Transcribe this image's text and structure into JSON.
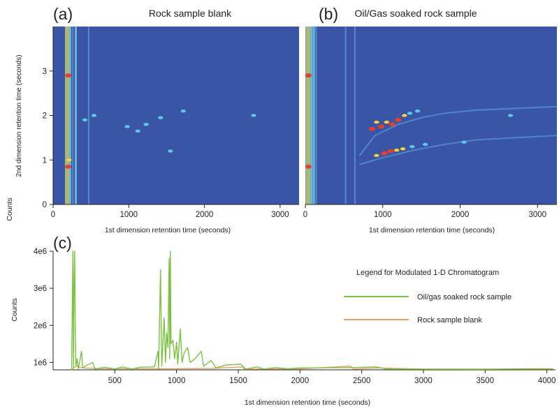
{
  "chart_data": [
    {
      "panel": "(a)",
      "type": "heatmap",
      "title": "Rock sample blank",
      "xlabel": "1st dimension retention time (seconds)",
      "ylabel": "2nd dimension retention time (seconds)",
      "xlim": [
        0,
        3250
      ],
      "ylim": [
        0,
        4
      ],
      "xticks": [
        0,
        1000,
        2000,
        3000
      ],
      "yticks": [
        0,
        1,
        2,
        3
      ],
      "column_streaks": [
        {
          "x": 175,
          "intensity": "high"
        },
        {
          "x": 200,
          "intensity": "high"
        },
        {
          "x": 225,
          "intensity": "medium"
        },
        {
          "x": 260,
          "intensity": "low"
        },
        {
          "x": 300,
          "intensity": "medium"
        },
        {
          "x": 470,
          "intensity": "low"
        }
      ],
      "spots": [
        {
          "x": 200,
          "y": 2.9,
          "intensity": "high"
        },
        {
          "x": 200,
          "y": 0.85,
          "intensity": "high"
        },
        {
          "x": 210,
          "y": 1.0,
          "intensity": "medium"
        },
        {
          "x": 420,
          "y": 1.9,
          "intensity": "low"
        },
        {
          "x": 540,
          "y": 2.0,
          "intensity": "low"
        },
        {
          "x": 980,
          "y": 1.75,
          "intensity": "low"
        },
        {
          "x": 1120,
          "y": 1.65,
          "intensity": "low"
        },
        {
          "x": 1230,
          "y": 1.8,
          "intensity": "low"
        },
        {
          "x": 1420,
          "y": 1.95,
          "intensity": "low"
        },
        {
          "x": 1720,
          "y": 2.1,
          "intensity": "low"
        },
        {
          "x": 1550,
          "y": 1.2,
          "intensity": "low"
        },
        {
          "x": 2650,
          "y": 2.0,
          "intensity": "low"
        }
      ]
    },
    {
      "panel": "(b)",
      "type": "heatmap",
      "title": "Oil/Gas soaked rock sample",
      "xlabel": "1st dimension retention time (seconds)",
      "ylabel": "",
      "xlim": [
        0,
        3250
      ],
      "ylim": [
        0,
        4
      ],
      "xticks": [
        0,
        1000,
        2000,
        3000
      ],
      "column_streaks": [
        {
          "x": 20,
          "intensity": "high"
        },
        {
          "x": 50,
          "intensity": "high"
        },
        {
          "x": 80,
          "intensity": "medium"
        },
        {
          "x": 110,
          "intensity": "medium"
        },
        {
          "x": 140,
          "intensity": "low"
        },
        {
          "x": 520,
          "intensity": "low"
        },
        {
          "x": 640,
          "intensity": "low"
        }
      ],
      "spots": [
        {
          "x": 40,
          "y": 2.9,
          "intensity": "high"
        },
        {
          "x": 40,
          "y": 0.85,
          "intensity": "high"
        },
        {
          "x": 860,
          "y": 1.7,
          "intensity": "high"
        },
        {
          "x": 920,
          "y": 1.85,
          "intensity": "medium"
        },
        {
          "x": 980,
          "y": 1.75,
          "intensity": "high"
        },
        {
          "x": 1050,
          "y": 1.85,
          "intensity": "medium"
        },
        {
          "x": 1120,
          "y": 1.8,
          "intensity": "high"
        },
        {
          "x": 1200,
          "y": 1.9,
          "intensity": "high"
        },
        {
          "x": 1280,
          "y": 2.0,
          "intensity": "medium"
        },
        {
          "x": 1350,
          "y": 2.05,
          "intensity": "low"
        },
        {
          "x": 1450,
          "y": 2.1,
          "intensity": "low"
        },
        {
          "x": 920,
          "y": 1.1,
          "intensity": "medium"
        },
        {
          "x": 1020,
          "y": 1.15,
          "intensity": "high"
        },
        {
          "x": 1100,
          "y": 1.2,
          "intensity": "high"
        },
        {
          "x": 1180,
          "y": 1.22,
          "intensity": "medium"
        },
        {
          "x": 1260,
          "y": 1.25,
          "intensity": "medium"
        },
        {
          "x": 1380,
          "y": 1.3,
          "intensity": "low"
        },
        {
          "x": 1550,
          "y": 1.35,
          "intensity": "low"
        },
        {
          "x": 2050,
          "y": 1.4,
          "intensity": "low"
        },
        {
          "x": 2650,
          "y": 2.0,
          "intensity": "low"
        }
      ],
      "curves": [
        {
          "intensity": "low",
          "points": [
            [
              700,
              0.9
            ],
            [
              1000,
              1.05
            ],
            [
              1400,
              1.22
            ],
            [
              1800,
              1.35
            ],
            [
              2200,
              1.45
            ],
            [
              2700,
              1.5
            ],
            [
              3250,
              1.55
            ]
          ]
        },
        {
          "intensity": "low",
          "points": [
            [
              700,
              1.1
            ],
            [
              900,
              1.55
            ],
            [
              1200,
              1.8
            ],
            [
              1500,
              1.95
            ],
            [
              1800,
              2.05
            ],
            [
              2200,
              2.12
            ],
            [
              3250,
              2.2
            ]
          ]
        }
      ]
    },
    {
      "panel": "(c)",
      "type": "line",
      "title": "Legend for Modulated 1-D Chromatogram",
      "xlabel": "1st dimension retention time (seconds)",
      "ylabel": "Counts",
      "xlim": [
        0,
        4070
      ],
      "ylim": [
        800000,
        4000000
      ],
      "xticks": [
        500,
        1000,
        1500,
        2000,
        2500,
        3000,
        3500,
        4000
      ],
      "yticks": [
        1000000,
        2000000,
        3000000,
        4000000
      ],
      "ytick_labels": [
        "1e6",
        "2e6",
        "3e6",
        "4e6"
      ],
      "legend_position": "top-right",
      "series": [
        {
          "name": "Oil/gas soaked rock sample",
          "color": "#7cc242",
          "points": [
            [
              150,
              800000
            ],
            [
              160,
              4000000
            ],
            [
              165,
              850000
            ],
            [
              170,
              3200000
            ],
            [
              175,
              4000000
            ],
            [
              180,
              1800000
            ],
            [
              185,
              900000
            ],
            [
              195,
              1100000
            ],
            [
              205,
              820000
            ],
            [
              230,
              1300000
            ],
            [
              240,
              850000
            ],
            [
              260,
              900000
            ],
            [
              320,
              1000000
            ],
            [
              340,
              820000
            ],
            [
              420,
              870000
            ],
            [
              500,
              820000
            ],
            [
              560,
              880000
            ],
            [
              640,
              820000
            ],
            [
              700,
              870000
            ],
            [
              820,
              880000
            ],
            [
              850,
              1300000
            ],
            [
              855,
              820000
            ],
            [
              870,
              3500000
            ],
            [
              880,
              900000
            ],
            [
              900,
              2200000
            ],
            [
              910,
              1000000
            ],
            [
              920,
              1800000
            ],
            [
              930,
              1400000
            ],
            [
              940,
              3800000
            ],
            [
              945,
              1100000
            ],
            [
              950,
              4000000
            ],
            [
              955,
              1500000
            ],
            [
              970,
              1600000
            ],
            [
              985,
              1100000
            ],
            [
              1000,
              1550000
            ],
            [
              1010,
              950000
            ],
            [
              1030,
              1900000
            ],
            [
              1045,
              1000000
            ],
            [
              1060,
              1250000
            ],
            [
              1090,
              1400000
            ],
            [
              1110,
              1000000
            ],
            [
              1150,
              1100000
            ],
            [
              1200,
              1300000
            ],
            [
              1220,
              900000
            ],
            [
              1280,
              1050000
            ],
            [
              1320,
              850000
            ],
            [
              1400,
              930000
            ],
            [
              1520,
              950000
            ],
            [
              1560,
              820000
            ],
            [
              1650,
              880000
            ],
            [
              1710,
              820000
            ],
            [
              1800,
              860000
            ],
            [
              1900,
              830000
            ],
            [
              2000,
              850000
            ],
            [
              2400,
              860000
            ],
            [
              2620,
              880000
            ],
            [
              2700,
              820000
            ],
            [
              3500,
              815000
            ],
            [
              3850,
              830000
            ],
            [
              4050,
              830000
            ]
          ]
        },
        {
          "name": "Rock sample blank",
          "color": "#e8a060",
          "points": [
            [
              150,
              800000
            ],
            [
              185,
              900000
            ],
            [
              210,
              880000
            ],
            [
              240,
              850000
            ],
            [
              400,
              830000
            ],
            [
              700,
              830000
            ],
            [
              1000,
              830000
            ],
            [
              1290,
              840000
            ],
            [
              1530,
              880000
            ],
            [
              1550,
              820000
            ],
            [
              2000,
              825000
            ],
            [
              2410,
              900000
            ],
            [
              2430,
              820000
            ],
            [
              2620,
              850000
            ],
            [
              3000,
              820000
            ],
            [
              4050,
              820000
            ]
          ]
        }
      ]
    }
  ]
}
